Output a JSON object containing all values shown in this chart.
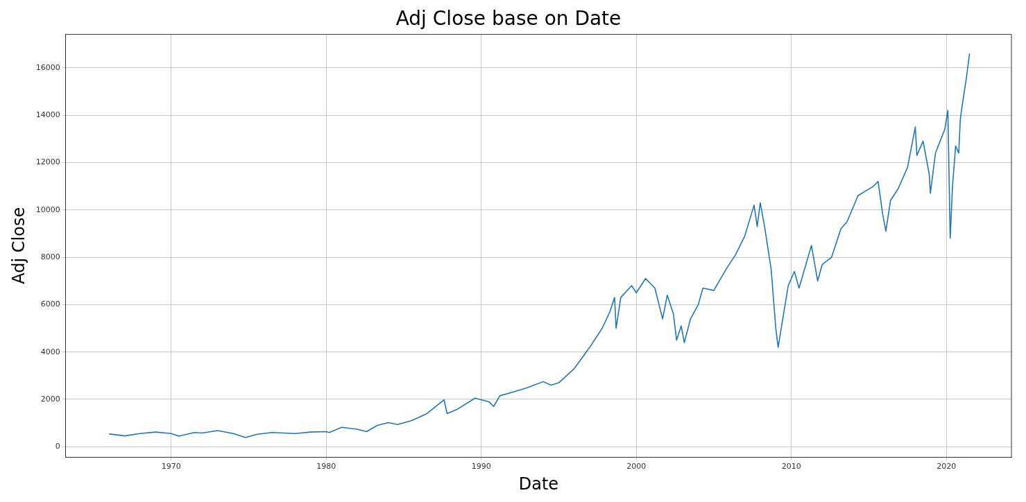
{
  "chart_data": {
    "type": "line",
    "title": "Adj Close base on Date",
    "xlabel": "Date",
    "ylabel": "Adj Close",
    "xlim": [
      1963.2,
      2024.2
    ],
    "xticks": [
      1970,
      1980,
      1990,
      2000,
      2010,
      2020
    ],
    "ylim": [
      -430,
      17410
    ],
    "yticks": [
      0,
      2000,
      4000,
      6000,
      8000,
      10000,
      12000,
      14000,
      16000
    ],
    "grid": true,
    "legend": false,
    "marker": "none",
    "line_style": "solid",
    "series": [
      {
        "color": "#1f77b4",
        "x": [
          1966.0,
          1967.0,
          1968.0,
          1969.0,
          1970.0,
          1970.5,
          1971.5,
          1972.0,
          1973.0,
          1974.0,
          1974.8,
          1975.5,
          1976.5,
          1978.0,
          1979.0,
          1980.0,
          1980.2,
          1981.0,
          1982.0,
          1982.6,
          1983.3,
          1984.0,
          1984.6,
          1985.5,
          1986.5,
          1987.6,
          1987.8,
          1988.5,
          1989.6,
          1990.5,
          1990.8,
          1991.2,
          1992.0,
          1993.0,
          1994.0,
          1994.5,
          1995.0,
          1996.0,
          1997.0,
          1997.8,
          1998.3,
          1998.6,
          1998.7,
          1999.0,
          1999.7,
          2000.0,
          2000.6,
          2001.2,
          2001.7,
          2002.0,
          2002.4,
          2002.6,
          2002.9,
          2003.1,
          2003.5,
          2004.0,
          2004.3,
          2005.0,
          2005.8,
          2006.4,
          2007.0,
          2007.6,
          2007.8,
          2008.0,
          2008.3,
          2008.7,
          2009.0,
          2009.15,
          2009.5,
          2009.8,
          2010.2,
          2010.5,
          2011.3,
          2011.7,
          2012.0,
          2012.6,
          2013.2,
          2013.6,
          2014.3,
          2014.8,
          2015.3,
          2015.6,
          2015.9,
          2016.1,
          2016.4,
          2016.9,
          2017.5,
          2018.0,
          2018.1,
          2018.5,
          2018.9,
          2018.97,
          2019.3,
          2019.6,
          2019.9,
          2020.1,
          2020.25,
          2020.4,
          2020.6,
          2020.8,
          2020.9,
          2021.0,
          2021.3,
          2021.5
        ],
        "values": [
          540,
          460,
          560,
          620,
          560,
          450,
          600,
          580,
          680,
          560,
          390,
          520,
          600,
          560,
          620,
          640,
          600,
          820,
          740,
          640,
          900,
          1020,
          940,
          1100,
          1400,
          1980,
          1400,
          1600,
          2050,
          1900,
          1700,
          2150,
          2300,
          2500,
          2750,
          2600,
          2700,
          3300,
          4200,
          5000,
          5700,
          6300,
          5000,
          6300,
          6800,
          6500,
          7100,
          6700,
          5400,
          6400,
          5600,
          4500,
          5100,
          4400,
          5400,
          6000,
          6700,
          6600,
          7500,
          8100,
          8900,
          10200,
          9300,
          10300,
          9200,
          7500,
          5000,
          4200,
          5600,
          6800,
          7400,
          6700,
          8500,
          7000,
          7700,
          8000,
          9200,
          9500,
          10600,
          10800,
          11000,
          11200,
          9800,
          9100,
          10400,
          10900,
          11800,
          13500,
          12300,
          12900,
          11500,
          10700,
          12400,
          12900,
          13400,
          14200,
          8800,
          11000,
          12700,
          12400,
          13800,
          14300,
          15600,
          16600
        ]
      }
    ]
  }
}
